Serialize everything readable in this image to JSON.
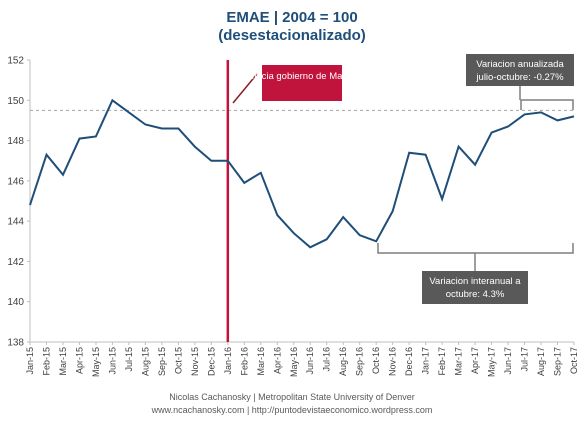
{
  "chart_data": {
    "type": "line",
    "title": "EMAE | 2004 = 100",
    "subtitle": "(desestacionalizado)",
    "x": [
      "Jan-15",
      "Feb-15",
      "Mar-15",
      "Apr-15",
      "May-15",
      "Jun-15",
      "Jul-15",
      "Aug-15",
      "Sep-15",
      "Oct-15",
      "Nov-15",
      "Dec-15",
      "Jan-16",
      "Feb-16",
      "Mar-16",
      "Apr-16",
      "May-16",
      "Jun-16",
      "Jul-16",
      "Aug-16",
      "Sep-16",
      "Oct-16",
      "Nov-16",
      "Dec-16",
      "Jan-17",
      "Feb-17",
      "Mar-17",
      "Apr-17",
      "May-17",
      "Jun-17",
      "Jul-17",
      "Aug-17",
      "Sep-17",
      "Oct-17"
    ],
    "series": [
      {
        "values": [
          144.8,
          147.3,
          146.3,
          148.1,
          148.2,
          150.0,
          149.4,
          148.8,
          148.6,
          148.6,
          147.7,
          147.0,
          147.0,
          145.9,
          146.4,
          144.3,
          143.4,
          142.7,
          143.1,
          144.2,
          143.3,
          143.0,
          144.5,
          147.4,
          147.3,
          145.1,
          147.7,
          146.8,
          148.4,
          148.7,
          149.3,
          149.4,
          149.0,
          149.2
        ],
        "color": "#1f4e79"
      }
    ],
    "ylim": [
      138,
      152
    ],
    "yticks": [
      "138",
      "140",
      "142",
      "144",
      "146",
      "148",
      "150",
      "152"
    ],
    "reference_line": {
      "y": 149.5,
      "style": "dashed"
    },
    "vertical_marker": {
      "x": "Jan-16",
      "color": "#c0143c"
    },
    "annotations": {
      "macri": "Inicia gobierno de Macri",
      "anualizada_line1": "Variacion anualizada",
      "anualizada_line2": "julio-octubre: -0.27%",
      "interanual_line1": "Variacion interanual a",
      "interanual_line2": "octubre: 4.3%"
    },
    "grid": false,
    "xlabel": "",
    "ylabel": ""
  },
  "footer": {
    "line1": "Nicolas Cachanosky | Metropolitan State University of Denver",
    "line2": "www.ncachanosky.com | http://puntodevistaeconomico.wordpress.com"
  }
}
